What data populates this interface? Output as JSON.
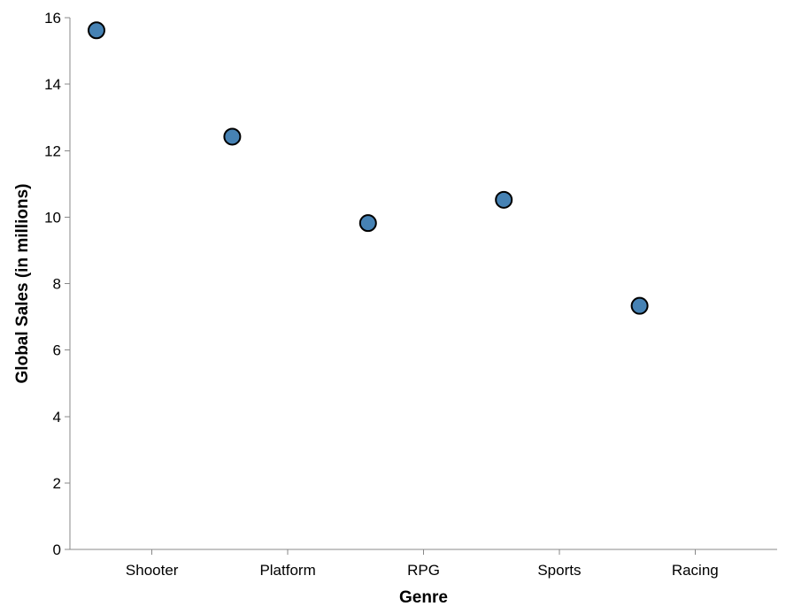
{
  "chart_data": {
    "type": "scatter",
    "title": "",
    "xlabel": "Genre",
    "ylabel": "Global Sales (in millions)",
    "categories": [
      "Shooter",
      "Platform",
      "RPG",
      "Sports",
      "Racing"
    ],
    "points": [
      {
        "x": "Shooter",
        "y": 15.62
      },
      {
        "x": "Platform",
        "y": 12.42
      },
      {
        "x": "RPG",
        "y": 9.82
      },
      {
        "x": "Sports",
        "y": 10.52
      },
      {
        "x": "Racing",
        "y": 7.33
      }
    ],
    "ylim": [
      0,
      16
    ],
    "yticks": [
      0,
      2,
      4,
      6,
      8,
      10,
      12,
      14,
      16
    ],
    "grid": false,
    "legend": "none",
    "point_color": "#4682b4",
    "point_stroke": "#000000"
  }
}
